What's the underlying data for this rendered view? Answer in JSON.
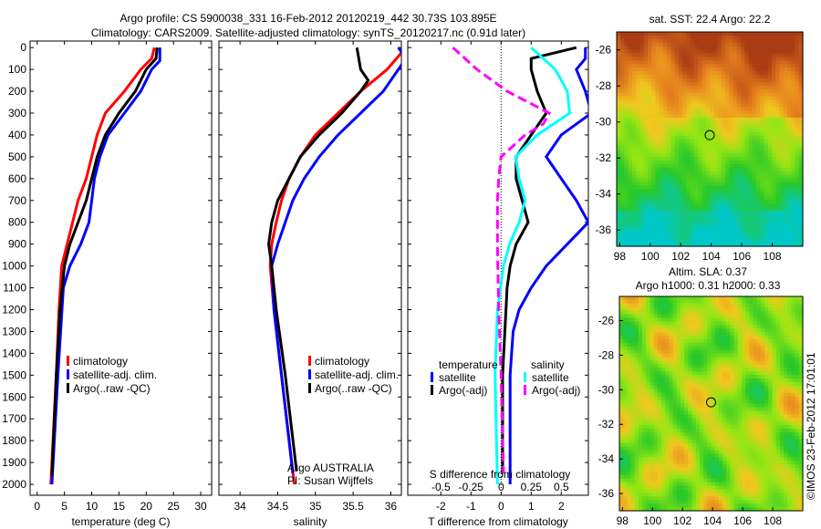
{
  "title": {
    "line1": "Argo profile: CS 5900038_331 16-Feb-2012 20120219_442 30.73S 103.895E",
    "line2": "Climatology: CARS2009. Satellite-adjusted climatology: synTS_20120217.nc (0.91d later)"
  },
  "copyright": "©IMOS 23-Feb-2012 17:01:01",
  "colors": {
    "climatology": "#ff0000",
    "satellite": "#0000ff",
    "argo": "#000000",
    "sal_sat": "#00ffff",
    "sal_argo": "#ff00ff"
  },
  "chart_data": [
    {
      "type": "line",
      "xlabel": "temperature (deg C)",
      "ylabel": "depth",
      "xlim": [
        -1.3,
        32
      ],
      "ylim": [
        2050,
        -30
      ],
      "xticks": [
        "0",
        "5",
        "10",
        "15",
        "20",
        "25",
        "30"
      ],
      "yticks": [
        "0",
        "100",
        "200",
        "300",
        "400",
        "500",
        "600",
        "700",
        "800",
        "900",
        "1000",
        "1100",
        "1200",
        "1300",
        "1400",
        "1500",
        "1600",
        "1700",
        "1800",
        "1900",
        "2000"
      ],
      "legend": [
        "climatology",
        "satellite-adj. clim.",
        "Argo(..raw -QC)"
      ],
      "series": [
        {
          "name": "climatology",
          "color": "#ff0000",
          "depth": [
            0,
            50,
            100,
            200,
            300,
            400,
            500,
            600,
            700,
            800,
            900,
            1000,
            1200,
            1500,
            2000
          ],
          "values": [
            21.5,
            21,
            19,
            16,
            12.5,
            11,
            10,
            9,
            7.5,
            6.5,
            5.5,
            4.5,
            4,
            3.5,
            2.5
          ]
        },
        {
          "name": "satellite-adj. clim.",
          "color": "#0000ff",
          "depth": [
            0,
            60,
            100,
            200,
            300,
            400,
            500,
            600,
            700,
            800,
            900,
            1000,
            1100,
            1500,
            2000
          ],
          "values": [
            22.5,
            22.5,
            21,
            19,
            16,
            13,
            11.5,
            10.5,
            10,
            9.5,
            8,
            6,
            4.8,
            3.8,
            2.7
          ]
        },
        {
          "name": "Argo(..raw -QC)",
          "color": "#000000",
          "depth": [
            0,
            50,
            100,
            200,
            300,
            400,
            500,
            600,
            700,
            800,
            900,
            1000,
            1200,
            1500,
            1960
          ],
          "values": [
            22,
            21.8,
            20,
            18,
            15,
            12.5,
            11,
            10,
            9,
            7.5,
            6,
            5,
            4.2,
            3.5,
            2.7
          ]
        }
      ]
    },
    {
      "type": "line",
      "xlabel": "salinity",
      "xlim": [
        33.72,
        36.14
      ],
      "ylim": [
        2050,
        -30
      ],
      "xticks": [
        "34",
        "34.5",
        "35",
        "35.5",
        "36"
      ],
      "legend": [
        "climatology",
        "satellite-adj. clim.",
        "Argo(..raw -QC)"
      ],
      "annotation": [
        "Argo AUSTRALIA",
        "PI: Susan Wijffels"
      ],
      "series": [
        {
          "name": "climatology",
          "color": "#ff0000",
          "depth": [
            0,
            100,
            200,
            300,
            400,
            500,
            600,
            700,
            800,
            900,
            1000,
            1200,
            1500,
            2000
          ],
          "values": [
            36.2,
            35.95,
            35.6,
            35.3,
            35.0,
            34.8,
            34.65,
            34.55,
            34.48,
            34.42,
            34.4,
            34.45,
            34.55,
            34.72
          ]
        },
        {
          "name": "satellite-adj. clim.",
          "color": "#0000ff",
          "depth": [
            0,
            50,
            100,
            200,
            300,
            400,
            500,
            600,
            700,
            800,
            900,
            1000,
            1200,
            1500,
            1950
          ],
          "values": [
            36.1,
            36.2,
            36.1,
            35.9,
            35.6,
            35.3,
            35.05,
            34.85,
            34.7,
            34.6,
            34.5,
            34.42,
            34.45,
            34.55,
            34.7
          ]
        },
        {
          "name": "Argo(..raw -QC)",
          "color": "#000000",
          "depth": [
            0,
            100,
            150,
            200,
            300,
            400,
            500,
            600,
            700,
            800,
            900,
            1000,
            1200,
            1500,
            1940
          ],
          "values": [
            35.55,
            35.6,
            35.7,
            35.6,
            35.35,
            35.05,
            34.8,
            34.65,
            34.5,
            34.42,
            34.38,
            34.42,
            34.48,
            34.6,
            34.75
          ]
        }
      ]
    },
    {
      "type": "line",
      "xlabel": "T difference from climatology",
      "x2label": "S difference from climatology",
      "xlim": [
        -3.1,
        2.9
      ],
      "ylim": [
        2050,
        -30
      ],
      "xticks": [
        "-2",
        "-1",
        "0",
        "1",
        "2"
      ],
      "x2ticks": [
        "-0.5",
        "-0.25",
        "0",
        "0.25",
        "0.5"
      ],
      "legend": {
        "temperature": "temperature",
        "salinity": "salinity",
        "t_sat": "satellite",
        "t_argo": "Argo(-adj)",
        "s_sat": "satellite",
        "s_argo": "Argo(-adj)"
      },
      "series": [
        {
          "name": "T satellite",
          "color": "#0000ff",
          "units": "T",
          "depth": [
            0,
            50,
            100,
            200,
            300,
            400,
            500,
            600,
            700,
            800,
            900,
            1000,
            1100,
            1200,
            1300,
            1500,
            2000
          ],
          "values": [
            2.8,
            2.8,
            2.5,
            2.8,
            3.0,
            2.0,
            1.5,
            2.0,
            2.5,
            2.9,
            2.2,
            1.5,
            1.0,
            0.6,
            0.4,
            0.3,
            0.3
          ]
        },
        {
          "name": "T Argo(-adj)",
          "color": "#000000",
          "units": "T",
          "depth": [
            0,
            50,
            100,
            200,
            300,
            400,
            500,
            600,
            700,
            800,
            900,
            1000,
            1100,
            1500,
            1950
          ],
          "values": [
            2.5,
            1.0,
            1.0,
            1.2,
            1.5,
            1.0,
            0.5,
            0.5,
            0.7,
            0.9,
            0.5,
            0.3,
            0.2,
            0.05,
            0.05
          ]
        },
        {
          "name": "S satellite",
          "color": "#00ffff",
          "units": "S",
          "depth": [
            0,
            100,
            200,
            300,
            400,
            500,
            600,
            700,
            800,
            900,
            1000,
            1200,
            1500,
            2000
          ],
          "values": [
            0.25,
            0.45,
            0.55,
            0.57,
            0.3,
            0.12,
            0.15,
            0.2,
            0.15,
            0.07,
            0.02,
            -0.03,
            -0.05,
            -0.03
          ]
        },
        {
          "name": "S Argo(-adj)",
          "color": "#ff00ff",
          "units": "S",
          "dashed": true,
          "depth": [
            0,
            100,
            200,
            300,
            350,
            400,
            500,
            600,
            700,
            900,
            1200,
            1500,
            1950
          ],
          "values": [
            -0.4,
            -0.2,
            0.05,
            0.4,
            0.35,
            0.2,
            0,
            -0.02,
            -0.03,
            -0.03,
            -0.02,
            0,
            0.02
          ]
        }
      ]
    },
    {
      "type": "heatmap",
      "title": "sat. SST: 22.4 Argo: 22.2",
      "xlim": [
        97.8,
        110
      ],
      "ylim": [
        -25,
        -36.9
      ],
      "xticks": [
        "98",
        "100",
        "102",
        "104",
        "106",
        "108"
      ],
      "yticks": [
        "-26",
        "-28",
        "-30",
        "-32",
        "-34",
        "-36"
      ],
      "marker": {
        "lon": 103.9,
        "lat": -30.73
      }
    },
    {
      "type": "heatmap",
      "title1": "Altim. SLA: 0.37",
      "title2": "Argo h1000: 0.31 h2000: 0.33",
      "xlim": [
        97.8,
        110
      ],
      "ylim": [
        -24.6,
        -37
      ],
      "xticks": [
        "98",
        "100",
        "102",
        "104",
        "106",
        "108"
      ],
      "yticks": [
        "-26",
        "-28",
        "-30",
        "-32",
        "-34",
        "-36"
      ],
      "marker": {
        "lon": 103.9,
        "lat": -30.73
      }
    }
  ]
}
